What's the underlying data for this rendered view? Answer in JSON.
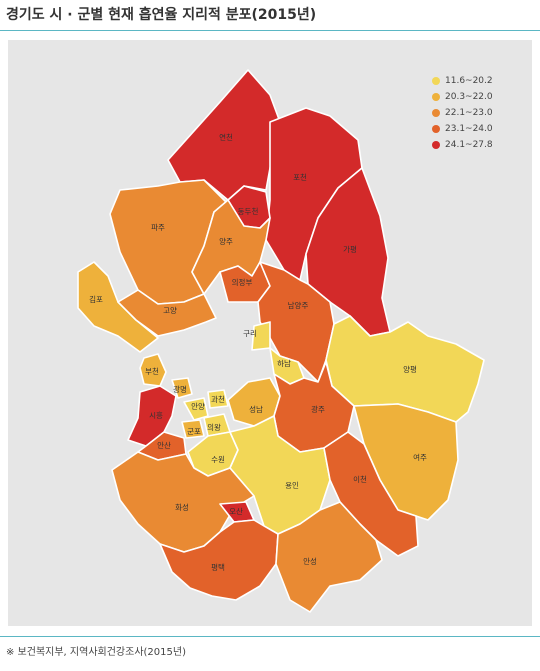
{
  "title": "경기도 시 · 군별 현재 흡연율 지리적 분포(2015년)",
  "source": "※ 보건복지부, 지역사회건강조사(2015년)",
  "legend": [
    {
      "range": "11.6~20.2",
      "color": "#f2d757"
    },
    {
      "range": "20.3~22.0",
      "color": "#eeb13b"
    },
    {
      "range": "22.1~23.0",
      "color": "#e98a33"
    },
    {
      "range": "23.1~24.0",
      "color": "#e2622a"
    },
    {
      "range": "24.1~27.8",
      "color": "#d32a2a"
    }
  ],
  "regions": [
    {
      "name": "연천",
      "class": 5
    },
    {
      "name": "포천",
      "class": 5
    },
    {
      "name": "동두천",
      "class": 5
    },
    {
      "name": "파주",
      "class": 3
    },
    {
      "name": "양주",
      "class": 3
    },
    {
      "name": "가평",
      "class": 5
    },
    {
      "name": "의정부",
      "class": 4
    },
    {
      "name": "김포",
      "class": 2
    },
    {
      "name": "고양",
      "class": 3
    },
    {
      "name": "남양주",
      "class": 4
    },
    {
      "name": "구리",
      "class": 1
    },
    {
      "name": "하남",
      "class": 1
    },
    {
      "name": "양평",
      "class": 1
    },
    {
      "name": "부천",
      "class": 2
    },
    {
      "name": "광명",
      "class": 2
    },
    {
      "name": "과천",
      "class": 1
    },
    {
      "name": "안양",
      "class": 1
    },
    {
      "name": "시흥",
      "class": 5
    },
    {
      "name": "성남",
      "class": 2
    },
    {
      "name": "광주",
      "class": 4
    },
    {
      "name": "군포",
      "class": 2
    },
    {
      "name": "의왕",
      "class": 1
    },
    {
      "name": "안산",
      "class": 4
    },
    {
      "name": "수원",
      "class": 1
    },
    {
      "name": "여주",
      "class": 2
    },
    {
      "name": "용인",
      "class": 1
    },
    {
      "name": "이천",
      "class": 4
    },
    {
      "name": "화성",
      "class": 3
    },
    {
      "name": "오산",
      "class": 5
    },
    {
      "name": "평택",
      "class": 4
    },
    {
      "name": "안성",
      "class": 3
    }
  ]
}
